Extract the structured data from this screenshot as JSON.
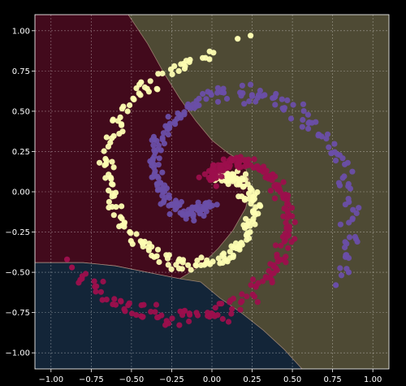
{
  "chart_data": {
    "type": "scatter",
    "title": "",
    "xlabel": "",
    "ylabel": "",
    "xlim": [
      -1.1,
      1.1
    ],
    "ylim": [
      -1.1,
      1.1
    ],
    "grid": true,
    "legend": "none",
    "x_ticks": [
      -1.0,
      -0.75,
      -0.5,
      -0.25,
      0.0,
      0.25,
      0.5,
      0.75,
      1.0
    ],
    "y_ticks": [
      -1.0,
      -0.75,
      -0.5,
      -0.25,
      0.0,
      0.25,
      0.5,
      0.75,
      1.0
    ],
    "x_tick_labels": [
      "−1.00",
      "−0.75",
      "−0.50",
      "−0.25",
      "0.00",
      "0.25",
      "0.50",
      "0.75",
      "1.00"
    ],
    "y_tick_labels": [
      "−1.00",
      "−0.75",
      "−0.50",
      "−0.25",
      "0.00",
      "0.25",
      "0.50",
      "0.75",
      "1.00"
    ],
    "colors": {
      "background": "#000000",
      "class_yellow_point": "#fdfdb2",
      "class_purple_point": "#6a4ea8",
      "class_crimson_point": "#9c0f4c",
      "region_yellow": "#4e4a34",
      "region_crimson": "#420a1c",
      "region_navy": "#132538",
      "boundary": "#c09e8c"
    },
    "decision_regions": [
      {
        "class": "crimson",
        "polygon": [
          [
            -1.1,
            1.1
          ],
          [
            -0.52,
            1.1
          ],
          [
            -0.4,
            0.92
          ],
          [
            -0.3,
            0.74
          ],
          [
            -0.2,
            0.58
          ],
          [
            -0.1,
            0.44
          ],
          [
            0.0,
            0.32
          ],
          [
            0.1,
            0.24
          ],
          [
            0.2,
            0.18
          ],
          [
            0.24,
            0.04
          ],
          [
            0.21,
            -0.1
          ],
          [
            0.13,
            -0.24
          ],
          [
            0.04,
            -0.35
          ],
          [
            -0.07,
            -0.46
          ],
          [
            -0.2,
            -0.54
          ],
          [
            -0.4,
            -0.5
          ],
          [
            -0.6,
            -0.46
          ],
          [
            -0.8,
            -0.44
          ],
          [
            -1.1,
            -0.44
          ]
        ]
      },
      {
        "class": "navy",
        "polygon": [
          [
            -1.1,
            -0.44
          ],
          [
            -0.8,
            -0.44
          ],
          [
            -0.6,
            -0.46
          ],
          [
            -0.4,
            -0.5
          ],
          [
            -0.2,
            -0.54
          ],
          [
            -0.07,
            -0.56
          ],
          [
            0.05,
            -0.66
          ],
          [
            0.18,
            -0.75
          ],
          [
            0.32,
            -0.86
          ],
          [
            0.45,
            -0.98
          ],
          [
            0.56,
            -1.1
          ],
          [
            -1.1,
            -1.1
          ]
        ]
      }
    ],
    "series": [
      {
        "color_key": "class_yellow_point",
        "spiral": {
          "r0": 0.84,
          "r1": 0.08,
          "theta0": 1.55,
          "theta1": 7.45,
          "cx": 0.0,
          "cy": 0.0
        },
        "n": 230,
        "noise": 0.025,
        "outliers": [
          [
            0.16,
            0.95
          ],
          [
            0.24,
            0.97
          ],
          [
            -0.44,
            0.68
          ]
        ]
      },
      {
        "color_key": "class_purple_point",
        "spiral": {
          "r0": 0.95,
          "r1": 0.07,
          "theta0": -0.55,
          "theta1": 4.6,
          "cx": 0.0,
          "cy": 0.0
        },
        "n": 230,
        "noise": 0.025,
        "outliers": [
          [
            0.77,
            -0.58
          ],
          [
            0.85,
            -0.5
          ]
        ]
      },
      {
        "color_key": "class_crimson_point",
        "spiral": {
          "r0": 0.96,
          "r1": 0.06,
          "theta0": 3.7,
          "theta1": 8.05,
          "cx": 0.0,
          "cy": 0.0
        },
        "n": 230,
        "noise": 0.025,
        "outliers": [
          [
            -0.9,
            -0.42
          ],
          [
            -0.87,
            -0.47
          ]
        ]
      }
    ]
  }
}
